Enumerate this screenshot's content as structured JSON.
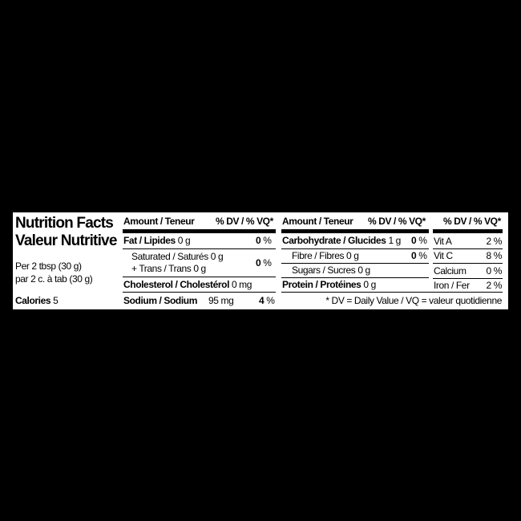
{
  "title_en": "Nutrition Facts",
  "title_fr": "Valeur Nutritive",
  "serving_en": "Per 2 tbsp (30 g)",
  "serving_fr": "par 2 c. à tab (30 g)",
  "calories_label": "Calories",
  "calories_value": "5",
  "amount_header": "Amount / Teneur",
  "dv_header": "% DV / % VQ",
  "asterisk": "*",
  "col1": {
    "fat": {
      "label": "Fat / Lipides",
      "amount": "0 g",
      "dv": "0",
      "pct": "%"
    },
    "saturated": {
      "label": "Saturated / Saturés",
      "amount": "0 g"
    },
    "trans": {
      "label": "+ Trans / Trans",
      "amount": "0 g"
    },
    "sat_trans_dv": "0",
    "cholesterol": {
      "label": "Cholesterol / Cholestérol",
      "amount": "0 mg"
    },
    "sodium": {
      "label": "Sodium / Sodium",
      "amount": "95 mg",
      "dv": "4"
    }
  },
  "col2": {
    "carbohydrate": {
      "label": "Carbohydrate / Glucides",
      "amount": "1 g",
      "dv": "0"
    },
    "fibre": {
      "label": "Fibre / Fibres",
      "amount": "0 g",
      "dv": "0"
    },
    "sugars": {
      "label": "Sugars / Sucres",
      "amount": "0 g"
    },
    "protein": {
      "label": "Protein / Protéines",
      "amount": "0 g"
    }
  },
  "vitamins": [
    {
      "label": "Vit A",
      "value": "2 %"
    },
    {
      "label": "Vit C",
      "value": "8 %"
    },
    {
      "label": "Calcium",
      "value": "0 %"
    },
    {
      "label": "Iron / Fer",
      "value": "2 %"
    }
  ],
  "footnote": "* DV = Daily Value / VQ = valeur quotidienne"
}
